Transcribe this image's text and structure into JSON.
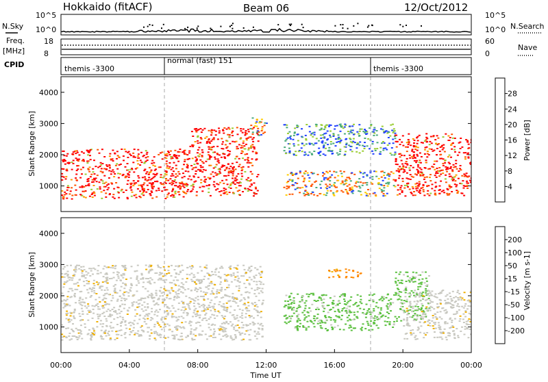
{
  "header": {
    "station": "Hokkaido (fitACF)",
    "beam": "Beam 06",
    "date": "12/Oct/2012"
  },
  "nsky_panel": {
    "left_label": "N.Sky",
    "right_label": "N.Search",
    "left_ticks": [
      "10^5",
      "10^0"
    ],
    "right_ticks": [
      "10^5",
      "10^0"
    ]
  },
  "freq_panel": {
    "left_label_1": "Freq.",
    "left_label_2": "[MHz]",
    "left_ticks": [
      "18",
      "8"
    ],
    "right_ticks": [
      "60",
      "0"
    ],
    "right_label": "Nave"
  },
  "cpid_panel": {
    "label": "CPID",
    "segments": [
      {
        "start_hour": 0,
        "name": "themis -3300"
      },
      {
        "start_hour": 6,
        "name": "normal (fast) 151"
      },
      {
        "start_hour": 18,
        "name": "themis -3300"
      }
    ]
  },
  "colors": {
    "power_scale": [
      "#0000e6",
      "#2040ff",
      "#3a7a9a",
      "#4aaa7a",
      "#9acd32",
      "#ffcc00",
      "#ff9900",
      "#ff5500",
      "#ff0000"
    ],
    "velocity_scale": [
      "#1030d0",
      "#2060c0",
      "#30a040",
      "#5cc040",
      "#c8c8c0",
      "#f0b000",
      "#ff8800",
      "#ff3300",
      "#e00000"
    ]
  },
  "chart_data": [
    {
      "type": "heatmap",
      "name": "power",
      "xlabel": "",
      "ylabel": "Slant Range [km]",
      "ylim": [
        180,
        4500
      ],
      "yticks": [
        "1000",
        "2000",
        "3000",
        "4000"
      ],
      "colorbar_label": "Power [dB]",
      "colorbar_ticks": [
        "4",
        "8",
        "12",
        "16",
        "20",
        "24",
        "28"
      ],
      "colorbar_range": [
        0,
        32
      ],
      "regions": [
        {
          "t0": 0.0,
          "t1": 7.5,
          "r0": 600,
          "r1": 2200,
          "level": "high"
        },
        {
          "t0": 7.5,
          "t1": 11.5,
          "r0": 700,
          "r1": 2900,
          "level": "high"
        },
        {
          "t0": 11.0,
          "t1": 12.0,
          "r0": 2600,
          "r1": 3200,
          "level": "medium"
        },
        {
          "t0": 13.0,
          "t1": 19.5,
          "r0": 700,
          "r1": 1500,
          "level": "medium"
        },
        {
          "t0": 13.0,
          "t1": 19.5,
          "r0": 2000,
          "r1": 3000,
          "level": "low"
        },
        {
          "t0": 19.5,
          "t1": 24.0,
          "r0": 700,
          "r1": 2700,
          "level": "high"
        }
      ]
    },
    {
      "type": "heatmap",
      "name": "velocity",
      "xlabel": "Time UT",
      "ylabel": "Slant Range [km]",
      "ylim": [
        180,
        4500
      ],
      "yticks": [
        "1000",
        "2000",
        "3000",
        "4000"
      ],
      "xticks": [
        "00:00",
        "04:00",
        "08:00",
        "12:00",
        "16:00",
        "20:00",
        "00:00"
      ],
      "xlim_hours": [
        0,
        24
      ],
      "colorbar_label": "Velocity [m s-1]",
      "colorbar_ticks": [
        "200",
        "100",
        "50",
        "15",
        "-15",
        "-50",
        "-100",
        "-200"
      ],
      "regions": [
        {
          "t0": 0.0,
          "t1": 11.8,
          "r0": 600,
          "r1": 3000,
          "level": "near-zero"
        },
        {
          "t0": 13.0,
          "t1": 19.5,
          "r0": 900,
          "r1": 2100,
          "level": "positive"
        },
        {
          "t0": 15.5,
          "t1": 17.5,
          "r0": 2600,
          "r1": 2900,
          "level": "negative"
        },
        {
          "t0": 19.5,
          "t1": 21.5,
          "r0": 1200,
          "r1": 2800,
          "level": "positive"
        },
        {
          "t0": 20.0,
          "t1": 24.0,
          "r0": 600,
          "r1": 2200,
          "level": "near-zero"
        }
      ]
    }
  ]
}
